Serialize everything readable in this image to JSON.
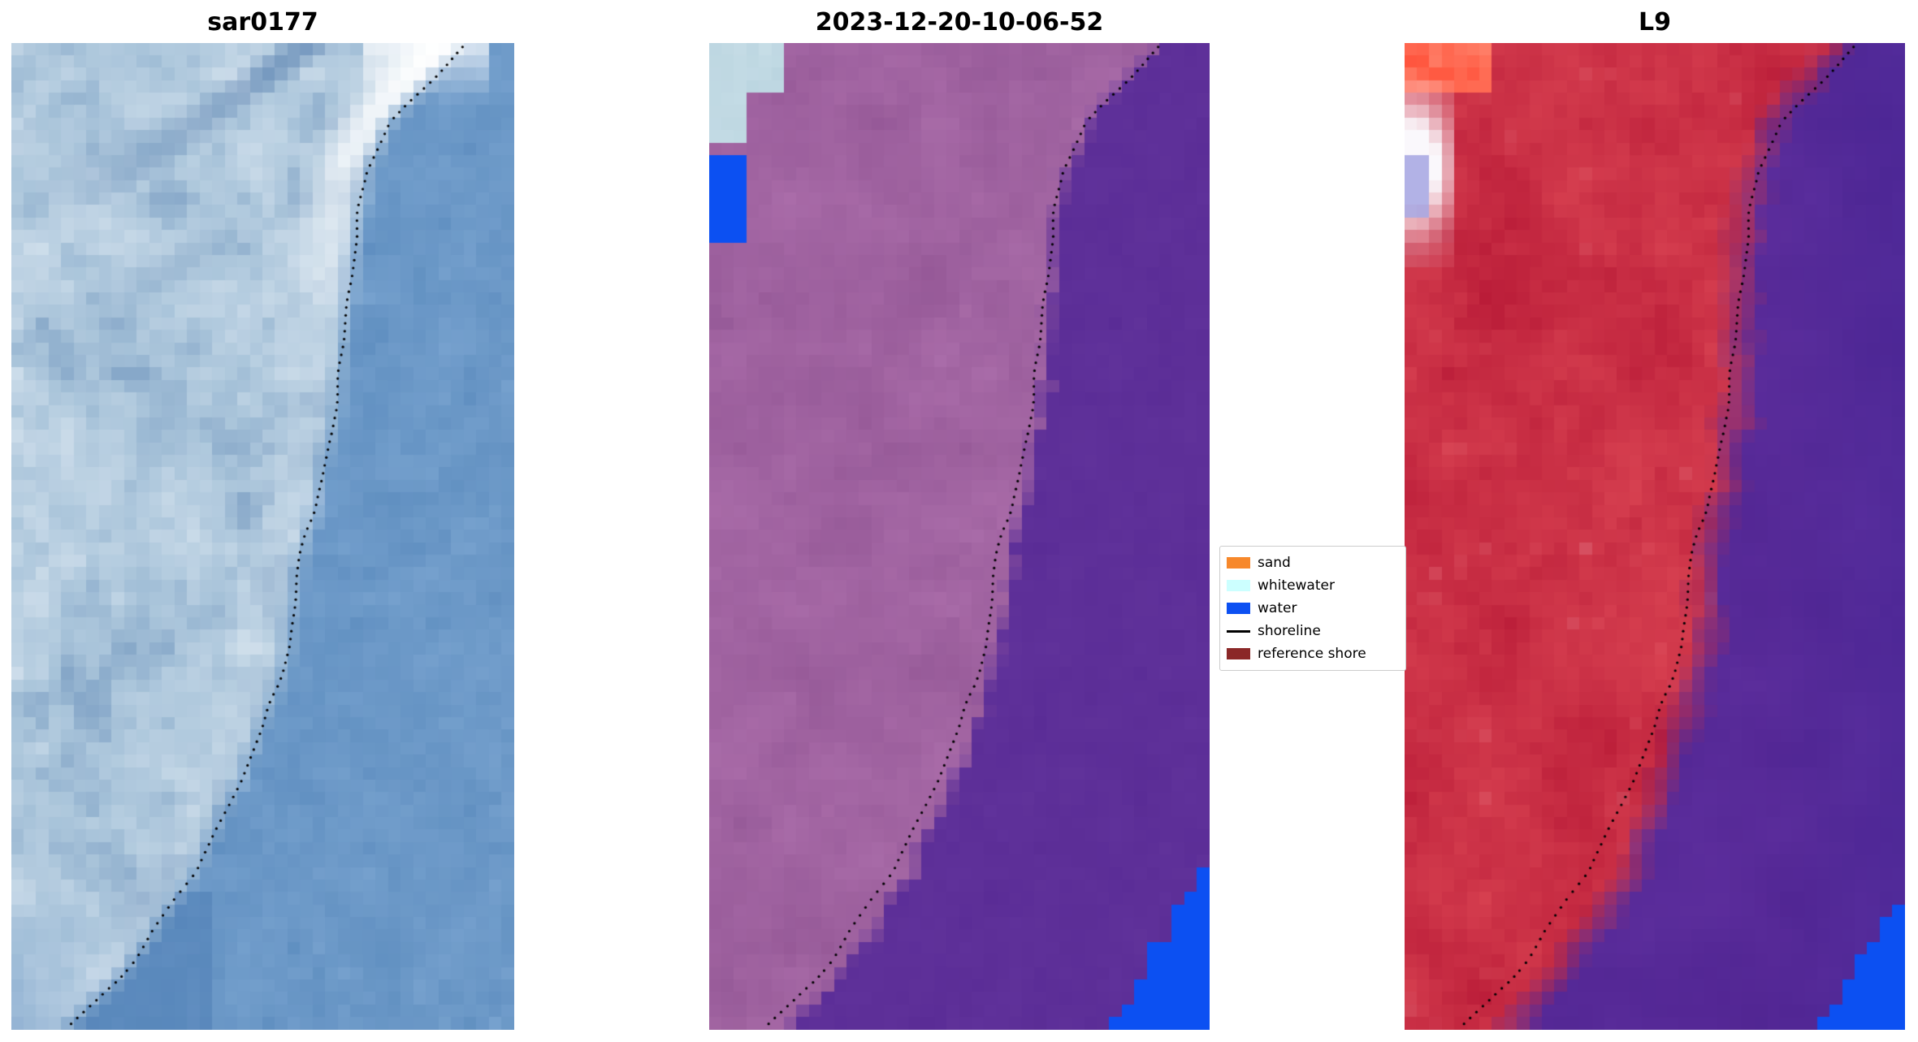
{
  "figure": {
    "background_color": "#ffffff",
    "panels": [
      {
        "title": "sar0177",
        "kind": "sar"
      },
      {
        "title": "2023-12-20-10-06-52",
        "kind": "classified"
      },
      {
        "title": "L9",
        "kind": "landsat"
      }
    ],
    "legend": {
      "items": [
        {
          "label": "sand",
          "kind": "patch",
          "color": "#f7882b"
        },
        {
          "label": "whitewater",
          "kind": "patch",
          "color": "#ccffff"
        },
        {
          "label": "water",
          "kind": "patch",
          "color": "#0c50f2"
        },
        {
          "label": "shoreline",
          "kind": "line",
          "color": "#000000"
        },
        {
          "label": "reference shore",
          "kind": "patch",
          "color": "#8b2828"
        }
      ]
    },
    "shoreline_color": "#000000",
    "shoreline_points": [
      [
        0.0,
        0.905
      ],
      [
        0.04,
        0.83
      ],
      [
        0.08,
        0.755
      ],
      [
        0.13,
        0.71
      ],
      [
        0.19,
        0.685
      ],
      [
        0.24,
        0.672
      ],
      [
        0.3,
        0.662
      ],
      [
        0.37,
        0.648
      ],
      [
        0.43,
        0.618
      ],
      [
        0.48,
        0.6
      ],
      [
        0.52,
        0.575
      ],
      [
        0.56,
        0.562
      ],
      [
        0.61,
        0.552
      ],
      [
        0.65,
        0.532
      ],
      [
        0.7,
        0.49
      ],
      [
        0.75,
        0.452
      ],
      [
        0.8,
        0.402
      ],
      [
        0.84,
        0.368
      ],
      [
        0.87,
        0.322
      ],
      [
        0.91,
        0.272
      ],
      [
        0.95,
        0.21
      ],
      [
        0.98,
        0.15
      ],
      [
        1.0,
        0.112
      ]
    ],
    "palettes": {
      "sar": {
        "water_base": "#5c8cbe",
        "water_light": "#7aa4d0",
        "water_dark": "#4a7ab2",
        "land_dark": "#5e86b4",
        "land_base": "#a9c4da",
        "land_light": "#ebf2f8",
        "streak_dark": "#4a74a8",
        "surf_bright": "#ffffff"
      },
      "classified": {
        "land_dark": "#8d5190",
        "land_light": "#b274b0",
        "water_dark": "#592b95",
        "water_light": "#6739a0",
        "water_patch": "#0c50f2",
        "whitewater_light": "#aecbd8",
        "whitewater_lighter": "#cfe4ec"
      },
      "landsat": {
        "land_dark": "#b01030",
        "land_light": "#e34f5a",
        "land_pink": "#d98898",
        "water_dark": "#4e2390",
        "water_light": "#5e2f9e",
        "water_deep": "#3f2a9b",
        "water_patch": "#0c50f2",
        "hot_red": "#ff4028",
        "hot_orange": "#ff9d86",
        "snow_white": "#faf8fc",
        "lavender": "#9a9ade"
      }
    }
  }
}
